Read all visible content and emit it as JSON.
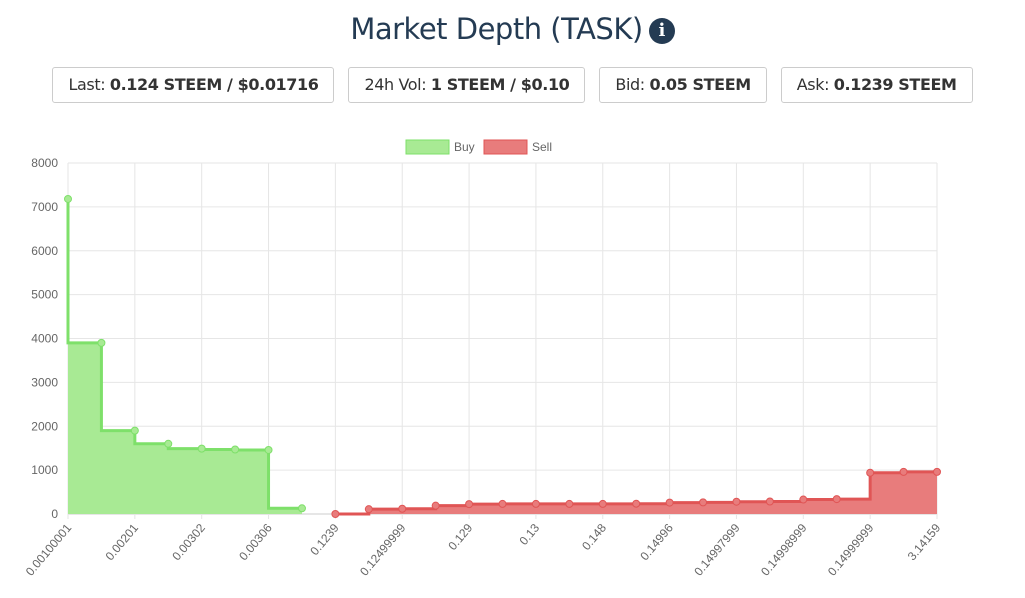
{
  "title": "Market Depth (TASK)",
  "info_icon": "info-circle-icon",
  "stats": [
    {
      "label": "Last:",
      "value": "0.124 STEEM / $0.01716"
    },
    {
      "label": "24h Vol:",
      "value": "1 STEEM / $0.10"
    },
    {
      "label": "Bid:",
      "value": "0.05 STEEM"
    },
    {
      "label": "Ask:",
      "value": "0.1239 STEEM"
    }
  ],
  "chart_data": {
    "type": "area",
    "legend": [
      "Buy",
      "Sell"
    ],
    "legend_position": "top",
    "colors": {
      "buy_fill": "#a8ea94",
      "buy_line": "#7ee06a",
      "sell_fill": "#e87c7c",
      "sell_line": "#e05555"
    },
    "ylim": [
      0,
      8000
    ],
    "yticks": [
      0,
      1000,
      2000,
      3000,
      4000,
      5000,
      6000,
      7000,
      8000
    ],
    "xlabels": [
      "0.00100001",
      "",
      "0.00201",
      "",
      "0.00302",
      "",
      "0.00306",
      "",
      "0.1239",
      "",
      "0.12499999",
      "",
      "0.129",
      "",
      "0.13",
      "",
      "0.148",
      "",
      "0.14996",
      "",
      "0.14997999",
      "",
      "0.14998999",
      "",
      "0.14999999",
      "",
      "3.14159"
    ],
    "buy": [
      7180,
      3900,
      1900,
      1600,
      1490,
      1470,
      1460,
      130
    ],
    "sell": [
      0,
      110,
      120,
      190,
      225,
      230,
      230,
      230,
      230,
      235,
      260,
      265,
      280,
      285,
      330,
      340,
      940,
      960,
      960
    ],
    "grid": true
  }
}
